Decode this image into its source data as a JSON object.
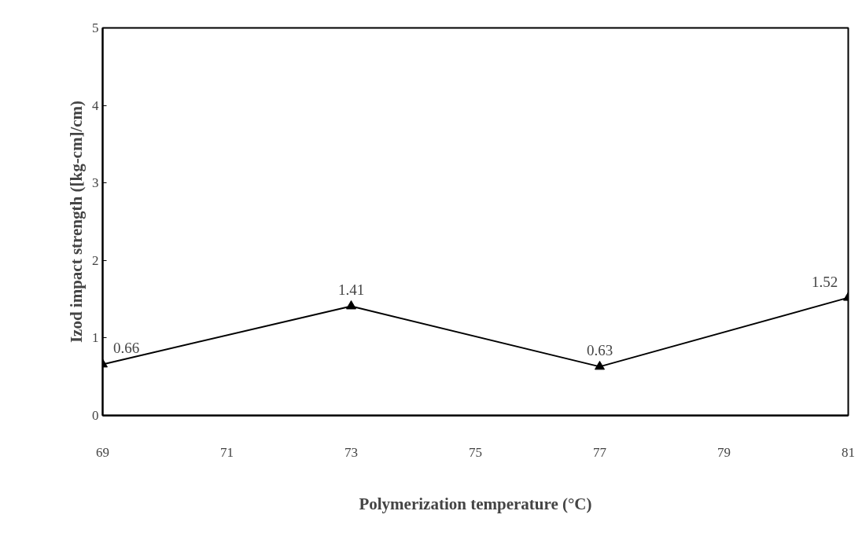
{
  "chart_data": {
    "type": "line",
    "xlabel": "Polymerization temperature (°C)",
    "ylabel": "Izod impact strength ([kg-cm]/cm)",
    "x": [
      69,
      73,
      77,
      81
    ],
    "series": [
      {
        "color": "#000000",
        "values": [
          0.66,
          1.41,
          0.63,
          1.52
        ]
      }
    ],
    "xlim": [
      69,
      81
    ],
    "xticks": [
      69,
      71,
      73,
      75,
      77,
      79,
      81
    ],
    "ylim": [
      0,
      5
    ],
    "yticks": [
      0,
      1,
      2,
      3,
      4,
      5
    ],
    "grid": false,
    "marker": "triangle",
    "line_style": "solid",
    "data_labels": true
  }
}
